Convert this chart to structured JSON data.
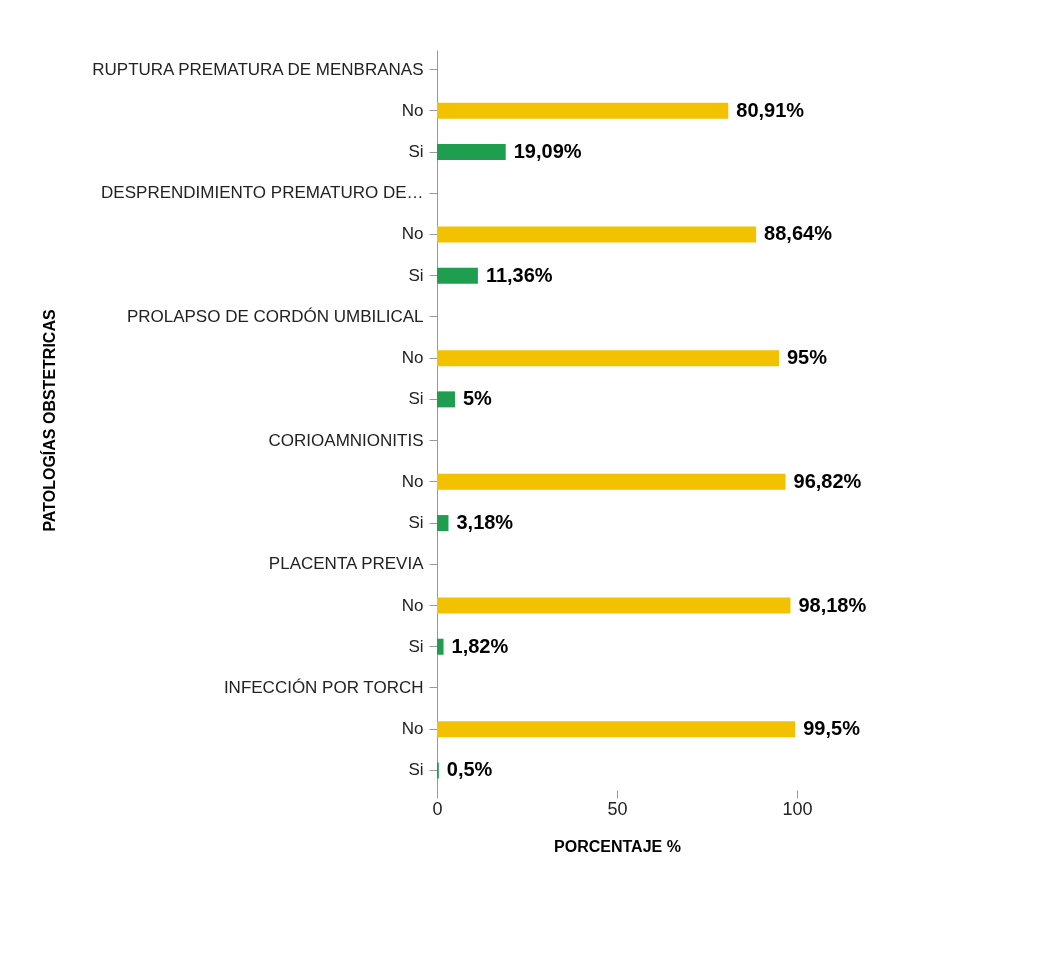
{
  "chart_data": {
    "type": "bar",
    "orientation": "horizontal",
    "xlabel": "PORCENTAJE %",
    "ylabel": "PATOLOGÍAS OBSTETRICAS",
    "categories": [
      "RUPTURA PREMATURA DE MENBRANAS",
      "No",
      "Si",
      "DESPRENDIMIENTO PREMATURO DE…",
      "No",
      "Si",
      "PROLAPSO DE CORDÓN UMBILICAL",
      "No",
      "Si",
      "CORIOAMNIONITIS",
      "No",
      "Si",
      "PLACENTA PREVIA",
      "No",
      "Si",
      "INFECCIÓN POR TORCH",
      "No",
      "Si"
    ],
    "values": [
      null,
      80.91,
      19.09,
      null,
      88.64,
      11.36,
      null,
      95,
      5,
      null,
      96.82,
      3.18,
      null,
      98.18,
      1.82,
      null,
      99.5,
      0.5
    ],
    "colors": [
      null,
      "#f2c200",
      "#1f9e4f",
      null,
      "#f2c200",
      "#1f9e4f",
      null,
      "#f2c200",
      "#1f9e4f",
      null,
      "#f2c200",
      "#1f9e4f",
      null,
      "#f2c200",
      "#1f9e4f",
      null,
      "#f2c200",
      "#1f9e4f"
    ],
    "value_labels": [
      null,
      "80,91%",
      "19,09%",
      null,
      "88,64%",
      "11,36%",
      null,
      "95%",
      "5%",
      null,
      "96,82%",
      "3,18%",
      null,
      "98,18%",
      "1,82%",
      null,
      "99,5%",
      "0,5%"
    ],
    "xlim": [
      0,
      100
    ],
    "xticks": [
      0,
      50,
      100
    ],
    "grid": false
  }
}
